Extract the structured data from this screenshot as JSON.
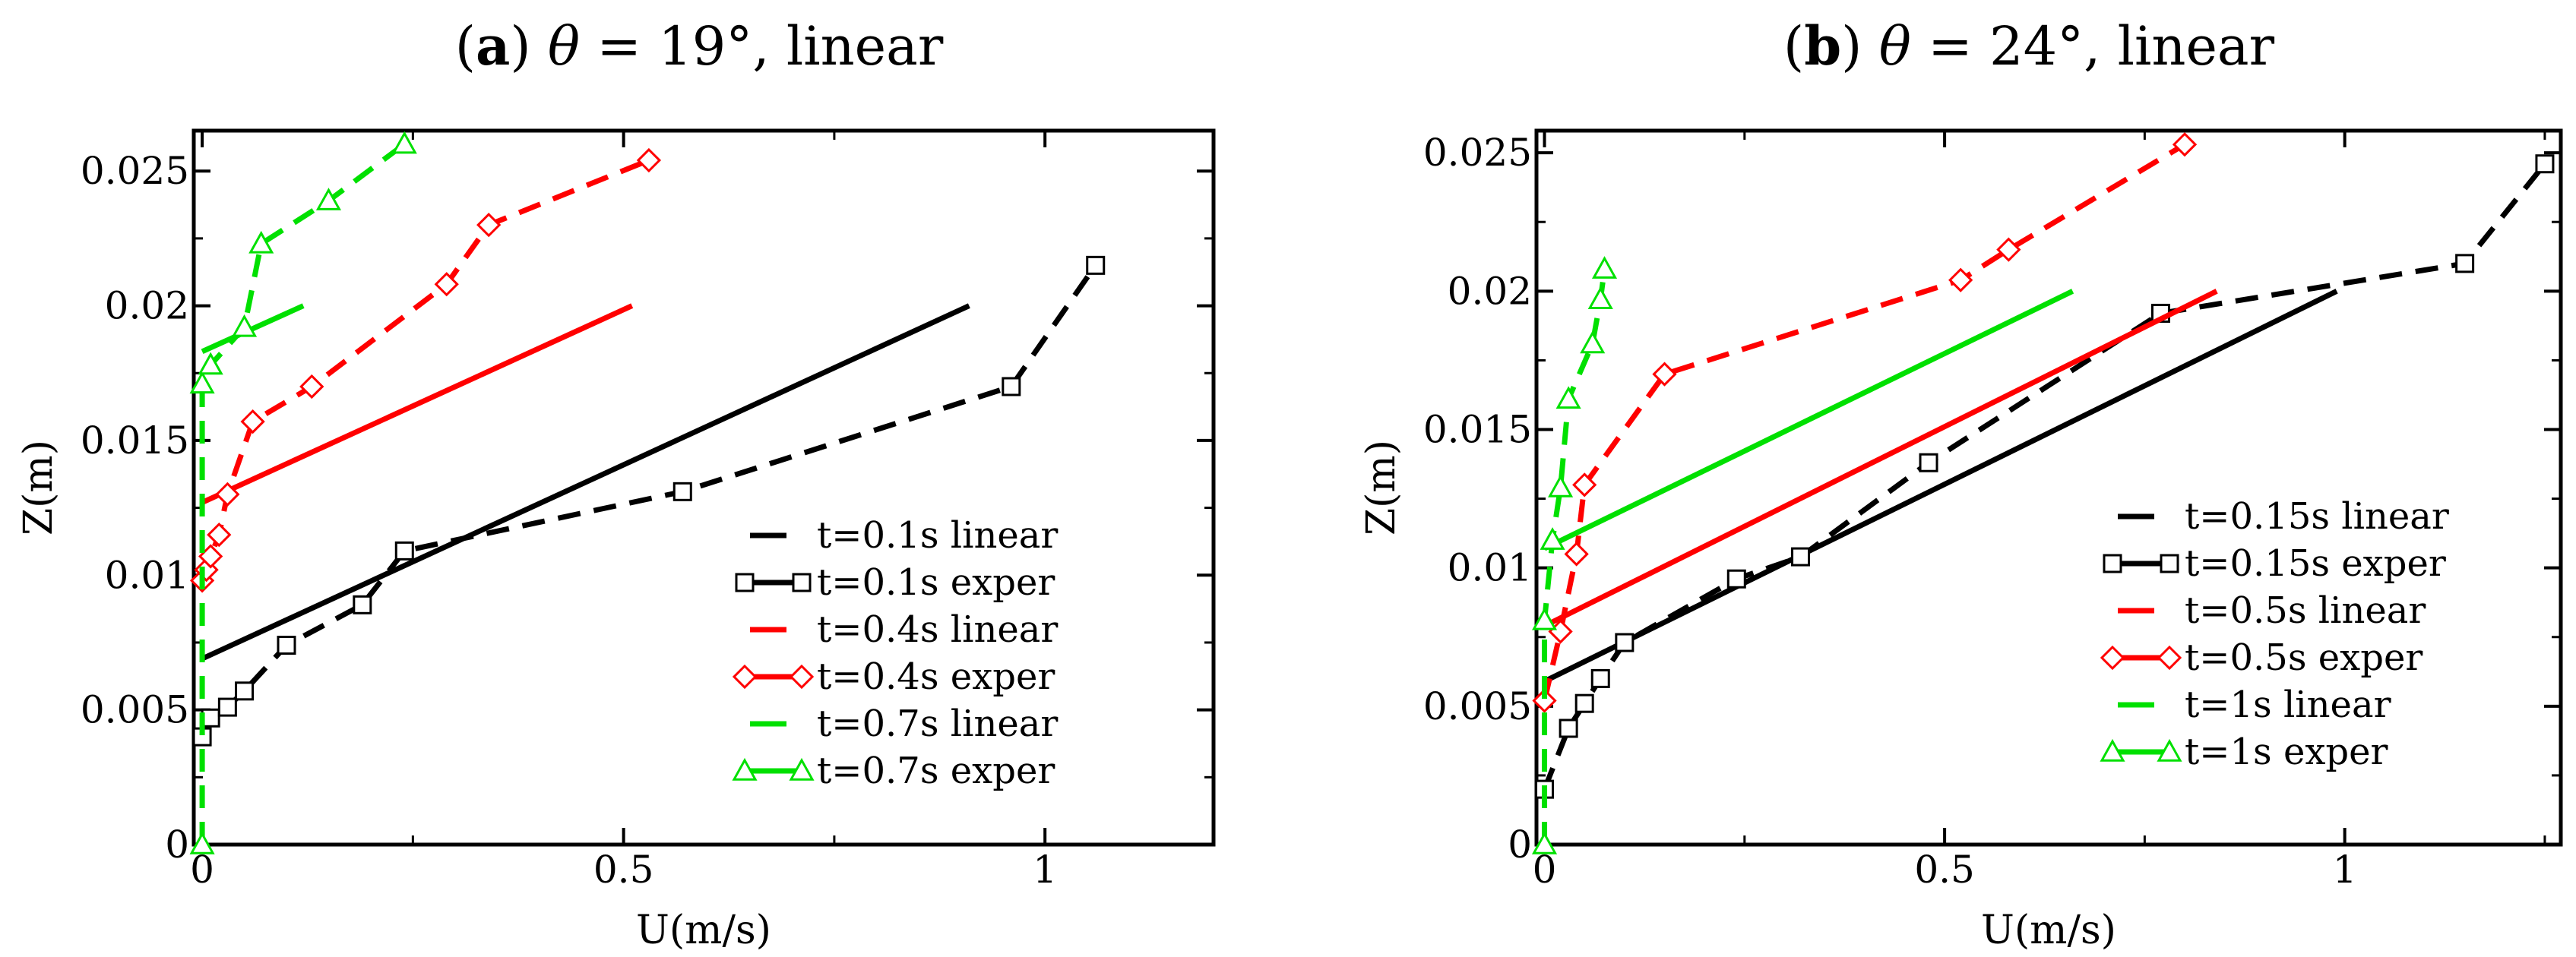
{
  "chart_data": [
    {
      "type": "line",
      "title": {
        "letter": "a",
        "theta": "θ",
        "equals": " = 19°",
        "suffix": ", linear"
      },
      "xlabel": "U(m/s)",
      "ylabel": "Z(m)",
      "xlim": [
        -0.01,
        1.2
      ],
      "ylim": [
        0,
        0.0265
      ],
      "xticks": [
        {
          "value": 0,
          "label": "0"
        },
        {
          "value": 0.5,
          "label": "0.5"
        },
        {
          "value": 1,
          "label": "1"
        }
      ],
      "yticks": [
        {
          "value": 0,
          "label": "0"
        },
        {
          "value": 0.005,
          "label": "0.005"
        },
        {
          "value": 0.01,
          "label": "0.01"
        },
        {
          "value": 0.015,
          "label": "0.015"
        },
        {
          "value": 0.02,
          "label": "0.02"
        },
        {
          "value": 0.025,
          "label": "0.025"
        }
      ],
      "legend_position": "lower-right",
      "series": [
        {
          "name": "t=0.1s linear",
          "color": "#000000",
          "style": "solid",
          "marker": "none",
          "x": [
            0,
            0.91
          ],
          "y": [
            0.0069,
            0.02
          ]
        },
        {
          "name": "t=0.1s exper",
          "color": "#000000",
          "style": "dashed",
          "marker": "square",
          "x": [
            0,
            0.01,
            0.03,
            0.05,
            0.1,
            0.19,
            0.24,
            0.57,
            0.96,
            1.06
          ],
          "y": [
            0.004,
            0.0047,
            0.0051,
            0.0057,
            0.0074,
            0.0089,
            0.0109,
            0.0131,
            0.017,
            0.0215
          ]
        },
        {
          "name": "t=0.4s linear",
          "color": "#ff0000",
          "style": "solid",
          "marker": "none",
          "x": [
            0,
            0.51
          ],
          "y": [
            0.0127,
            0.02
          ]
        },
        {
          "name": "t=0.4s exper",
          "color": "#ff0000",
          "style": "dashed",
          "marker": "diamond",
          "x": [
            0,
            0.005,
            0.01,
            0.02,
            0.03,
            0.06,
            0.13,
            0.29,
            0.34,
            0.53
          ],
          "y": [
            0.0098,
            0.0102,
            0.0107,
            0.0115,
            0.013,
            0.0157,
            0.017,
            0.0208,
            0.023,
            0.0254
          ]
        },
        {
          "name": "t=0.7s linear",
          "color": "#00e000",
          "style": "solid",
          "marker": "none",
          "x": [
            0,
            0.12
          ],
          "y": [
            0.0183,
            0.02
          ]
        },
        {
          "name": "t=0.7s exper",
          "color": "#00e000",
          "style": "dashed",
          "marker": "triangle",
          "x": [
            0,
            0,
            0.01,
            0.05,
            0.07,
            0.15,
            0.24
          ],
          "y": [
            0,
            0.0171,
            0.0178,
            0.0192,
            0.0223,
            0.0239,
            0.026
          ]
        }
      ]
    },
    {
      "type": "line",
      "title": {
        "letter": "b",
        "theta": "θ",
        "equals": " = 24°",
        "suffix": ", linear"
      },
      "xlabel": "U(m/s)",
      "ylabel": "Z(m)",
      "xlim": [
        -0.01,
        1.27
      ],
      "ylim": [
        0,
        0.0258
      ],
      "xticks": [
        {
          "value": 0,
          "label": "0"
        },
        {
          "value": 0.5,
          "label": "0.5"
        },
        {
          "value": 1,
          "label": "1"
        }
      ],
      "yticks": [
        {
          "value": 0,
          "label": "0"
        },
        {
          "value": 0.005,
          "label": "0.005"
        },
        {
          "value": 0.01,
          "label": "0.01"
        },
        {
          "value": 0.015,
          "label": "0.015"
        },
        {
          "value": 0.02,
          "label": "0.02"
        },
        {
          "value": 0.025,
          "label": "0.025"
        }
      ],
      "legend_position": "lower-right",
      "series": [
        {
          "name": "t=0.15s linear",
          "color": "#000000",
          "style": "solid",
          "marker": "none",
          "x": [
            0,
            0.99
          ],
          "y": [
            0.0059,
            0.02
          ]
        },
        {
          "name": "t=0.15s exper",
          "color": "#000000",
          "style": "dashed",
          "marker": "square",
          "x": [
            0,
            0.03,
            0.05,
            0.07,
            0.1,
            0.24,
            0.32,
            0.48,
            0.77,
            1.15,
            1.25
          ],
          "y": [
            0.002,
            0.0042,
            0.0051,
            0.006,
            0.0073,
            0.0096,
            0.0104,
            0.0138,
            0.0192,
            0.021,
            0.0246
          ]
        },
        {
          "name": "t=0.5s linear",
          "color": "#ff0000",
          "style": "solid",
          "marker": "none",
          "x": [
            0,
            0.84
          ],
          "y": [
            0.0079,
            0.02
          ]
        },
        {
          "name": "t=0.5s exper",
          "color": "#ff0000",
          "style": "dashed",
          "marker": "diamond",
          "x": [
            0,
            0.02,
            0.04,
            0.05,
            0.15,
            0.52,
            0.58,
            0.8
          ],
          "y": [
            0.0052,
            0.0077,
            0.0105,
            0.013,
            0.017,
            0.0204,
            0.0215,
            0.0253
          ]
        },
        {
          "name": "t=1s linear",
          "color": "#00e000",
          "style": "solid",
          "marker": "none",
          "x": [
            0,
            0.66
          ],
          "y": [
            0.0107,
            0.02
          ]
        },
        {
          "name": "t=1s exper",
          "color": "#00e000",
          "style": "dashed",
          "marker": "triangle",
          "x": [
            0,
            0,
            0.01,
            0.02,
            0.03,
            0.06,
            0.07,
            0.075
          ],
          "y": [
            0,
            0.0081,
            0.011,
            0.0129,
            0.0161,
            0.0181,
            0.0197,
            0.0208
          ]
        }
      ]
    }
  ]
}
